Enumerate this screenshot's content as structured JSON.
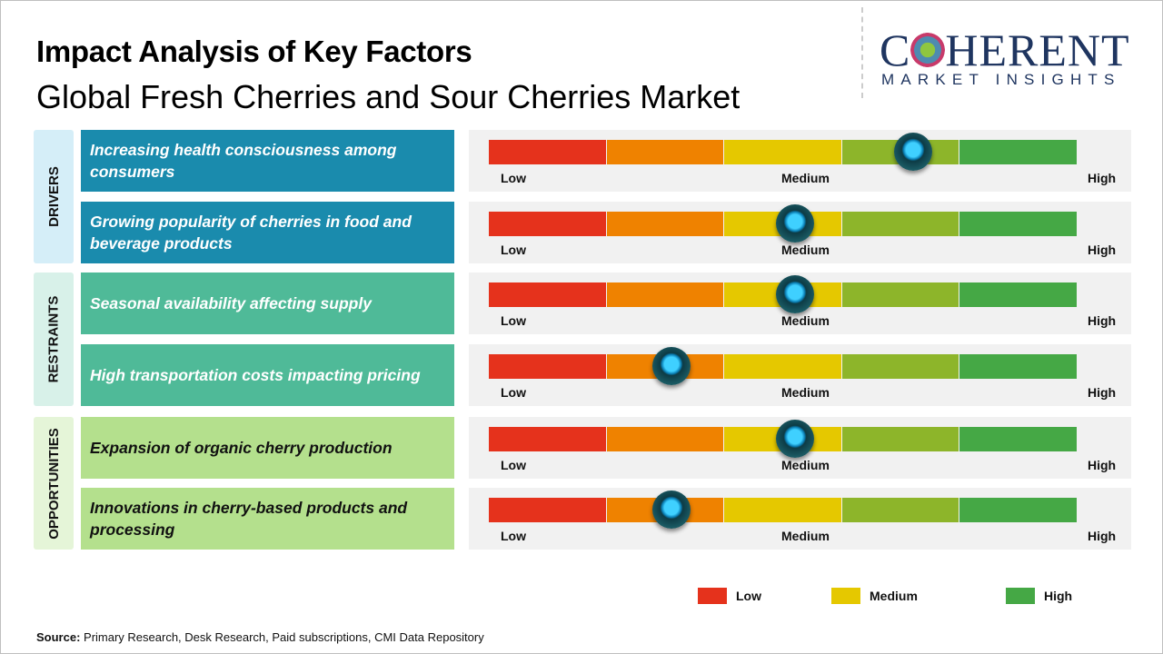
{
  "header": {
    "title": "Impact Analysis of Key Factors",
    "subtitle": "Global Fresh Cherries and Sour Cherries Market"
  },
  "logo": {
    "line1_pre": "C",
    "line1_post": "HERENT",
    "line2": "MARKET INSIGHTS"
  },
  "colors": {
    "low": "#e5321c",
    "low_mid": "#ef8200",
    "medium": "#e5c800",
    "mid_high": "#8db52a",
    "high": "#45a845",
    "drivers": "#1a8bad",
    "restraints": "#4fba98",
    "opportunities": "#b4e08d"
  },
  "chart_data": {
    "type": "table",
    "scale_labels": [
      "Low",
      "Medium",
      "High"
    ],
    "categories": [
      {
        "name": "DRIVERS",
        "bg": "#d5eef8",
        "factor_color": "#1a8bad",
        "text_color": "#ffffff",
        "factors": [
          {
            "text": "Increasing health consciousness among consumers",
            "impact_level": 0.72
          },
          {
            "text": "Growing popularity of cherries in food and beverage products",
            "impact_level": 0.52
          }
        ]
      },
      {
        "name": "RESTRAINTS",
        "bg": "#d8f1e9",
        "factor_color": "#4fba98",
        "text_color": "#ffffff",
        "factors": [
          {
            "text": "Seasonal availability affecting supply",
            "impact_level": 0.52
          },
          {
            "text": "High transportation costs impacting pricing",
            "impact_level": 0.31
          }
        ]
      },
      {
        "name": "OPPORTUNITIES",
        "bg": "#e5f5d8",
        "factor_color": "#b4e08d",
        "text_color": "#111111",
        "factors": [
          {
            "text": "Expansion of organic cherry production",
            "impact_level": 0.52
          },
          {
            "text": "Innovations in cherry-based products and processing",
            "impact_level": 0.31
          }
        ]
      }
    ],
    "legend": [
      {
        "label": "Low",
        "color": "#e5321c"
      },
      {
        "label": "Medium",
        "color": "#e5c800"
      },
      {
        "label": "High",
        "color": "#45a845"
      }
    ]
  },
  "source": {
    "label": "Source:",
    "text": " Primary Research, Desk Research, Paid subscriptions, CMI Data Repository"
  }
}
